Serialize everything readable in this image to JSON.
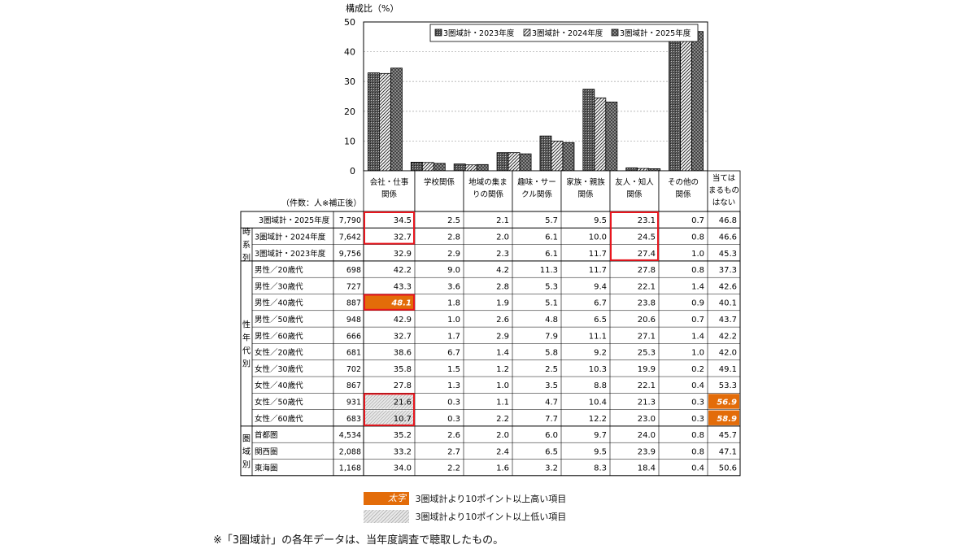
{
  "chart_data": {
    "type": "bar",
    "ylabel": "構成比（%）",
    "ylim": [
      0,
      50
    ],
    "yticks": [
      "0",
      "10",
      "20",
      "30",
      "40",
      "50"
    ],
    "categories": [
      [
        "会社・仕事",
        "関係"
      ],
      [
        "学校関係"
      ],
      [
        "地域の集ま",
        "りの関係"
      ],
      [
        "趣味・サー",
        "クル関係"
      ],
      [
        "家族・親族",
        "関係"
      ],
      [
        "友人・知人",
        "関係"
      ],
      [
        "その他の",
        "関係"
      ],
      [
        "当ては",
        "まるもの",
        "はない"
      ]
    ],
    "series": [
      {
        "name": "3圏域計・2023年度",
        "pattern": "dark",
        "values": [
          32.9,
          2.9,
          2.3,
          6.1,
          11.7,
          27.4,
          1.0,
          45.3
        ]
      },
      {
        "name": "3圏域計・2024年度",
        "pattern": "diag",
        "values": [
          32.7,
          2.8,
          2.0,
          6.1,
          10.0,
          24.5,
          0.8,
          46.6
        ]
      },
      {
        "name": "3圏域計・2025年度",
        "pattern": "cross",
        "values": [
          34.5,
          2.5,
          2.1,
          5.7,
          9.5,
          23.1,
          0.7,
          46.8
        ]
      }
    ],
    "grid": true,
    "legend": "top-right"
  },
  "table": {
    "count_header": "（件数：人※補正後）",
    "groups": [
      {
        "label": "",
        "rows": [
          {
            "name": "3圏域計・2025年度",
            "n": "7,790",
            "v": [
              "34.5",
              "2.5",
              "2.1",
              "5.7",
              "9.5",
              "23.1",
              "0.7",
              "46.8"
            ]
          }
        ]
      },
      {
        "label": "時系列",
        "rows": [
          {
            "name": "3圏域計・2024年度",
            "n": "7,642",
            "v": [
              "32.7",
              "2.8",
              "2.0",
              "6.1",
              "10.0",
              "24.5",
              "0.8",
              "46.6"
            ]
          },
          {
            "name": "3圏域計・2023年度",
            "n": "9,756",
            "v": [
              "32.9",
              "2.9",
              "2.3",
              "6.1",
              "11.7",
              "27.4",
              "1.0",
              "45.3"
            ]
          }
        ]
      },
      {
        "label": "性年代別",
        "rows": [
          {
            "name": "男性／20歳代",
            "n": "698",
            "v": [
              "42.2",
              "9.0",
              "4.2",
              "11.3",
              "11.7",
              "27.8",
              "0.8",
              "37.3"
            ]
          },
          {
            "name": "男性／30歳代",
            "n": "727",
            "v": [
              "43.3",
              "3.6",
              "2.8",
              "5.3",
              "9.4",
              "22.1",
              "1.4",
              "42.6"
            ]
          },
          {
            "name": "男性／40歳代",
            "n": "887",
            "v": [
              "48.1",
              "1.8",
              "1.9",
              "5.1",
              "6.7",
              "23.8",
              "0.9",
              "40.1"
            ]
          },
          {
            "name": "男性／50歳代",
            "n": "948",
            "v": [
              "42.9",
              "1.0",
              "2.6",
              "4.8",
              "6.5",
              "20.6",
              "0.7",
              "43.7"
            ]
          },
          {
            "name": "男性／60歳代",
            "n": "666",
            "v": [
              "32.7",
              "1.7",
              "2.9",
              "7.9",
              "11.1",
              "27.1",
              "1.4",
              "42.2"
            ]
          },
          {
            "name": "女性／20歳代",
            "n": "681",
            "v": [
              "38.6",
              "6.7",
              "1.4",
              "5.8",
              "9.2",
              "25.3",
              "1.0",
              "42.0"
            ]
          },
          {
            "name": "女性／30歳代",
            "n": "702",
            "v": [
              "35.8",
              "1.5",
              "1.2",
              "2.5",
              "10.3",
              "19.9",
              "0.2",
              "49.1"
            ]
          },
          {
            "name": "女性／40歳代",
            "n": "867",
            "v": [
              "27.8",
              "1.3",
              "1.0",
              "3.5",
              "8.8",
              "22.1",
              "0.4",
              "53.3"
            ]
          },
          {
            "name": "女性／50歳代",
            "n": "931",
            "v": [
              "21.6",
              "0.3",
              "1.1",
              "4.7",
              "10.4",
              "21.3",
              "0.3",
              "56.9"
            ]
          },
          {
            "name": "女性／60歳代",
            "n": "683",
            "v": [
              "10.7",
              "0.3",
              "2.2",
              "7.7",
              "12.2",
              "23.0",
              "0.3",
              "58.9"
            ]
          }
        ]
      },
      {
        "label": "圏域別",
        "rows": [
          {
            "name": "首都圏",
            "n": "4,534",
            "v": [
              "35.2",
              "2.6",
              "2.0",
              "6.0",
              "9.7",
              "24.0",
              "0.8",
              "45.7"
            ]
          },
          {
            "name": "関西圏",
            "n": "2,088",
            "v": [
              "33.2",
              "2.7",
              "2.4",
              "6.5",
              "9.5",
              "23.9",
              "0.8",
              "47.1"
            ]
          },
          {
            "name": "東海圏",
            "n": "1,168",
            "v": [
              "34.0",
              "2.2",
              "1.6",
              "3.2",
              "8.3",
              "18.4",
              "0.4",
              "50.6"
            ]
          }
        ]
      }
    ],
    "high_cells": [
      [
        5,
        0
      ],
      [
        11,
        7
      ],
      [
        12,
        7
      ]
    ],
    "low_cells": [
      [
        11,
        0
      ],
      [
        12,
        0
      ]
    ],
    "red_boxes": [
      {
        "rows": [
          0,
          1
        ],
        "col": 0
      },
      {
        "rows": [
          0,
          2
        ],
        "col": 5
      },
      {
        "rows": [
          5,
          5
        ],
        "col": 0
      },
      {
        "rows": [
          11,
          12
        ],
        "col": 0
      }
    ]
  },
  "notes": {
    "high_sample": "太字",
    "high_label": "3圏域計より10ポイント以上高い項目",
    "low_label": "3圏域計より10ポイント以上低い項目",
    "footnote": "※「3圏域計」の各年データは、当年度調査で聴取したもの。"
  },
  "colors": {
    "high": "#e36c09",
    "border_red": "#e8161e",
    "grid": "#b0b0b0"
  }
}
